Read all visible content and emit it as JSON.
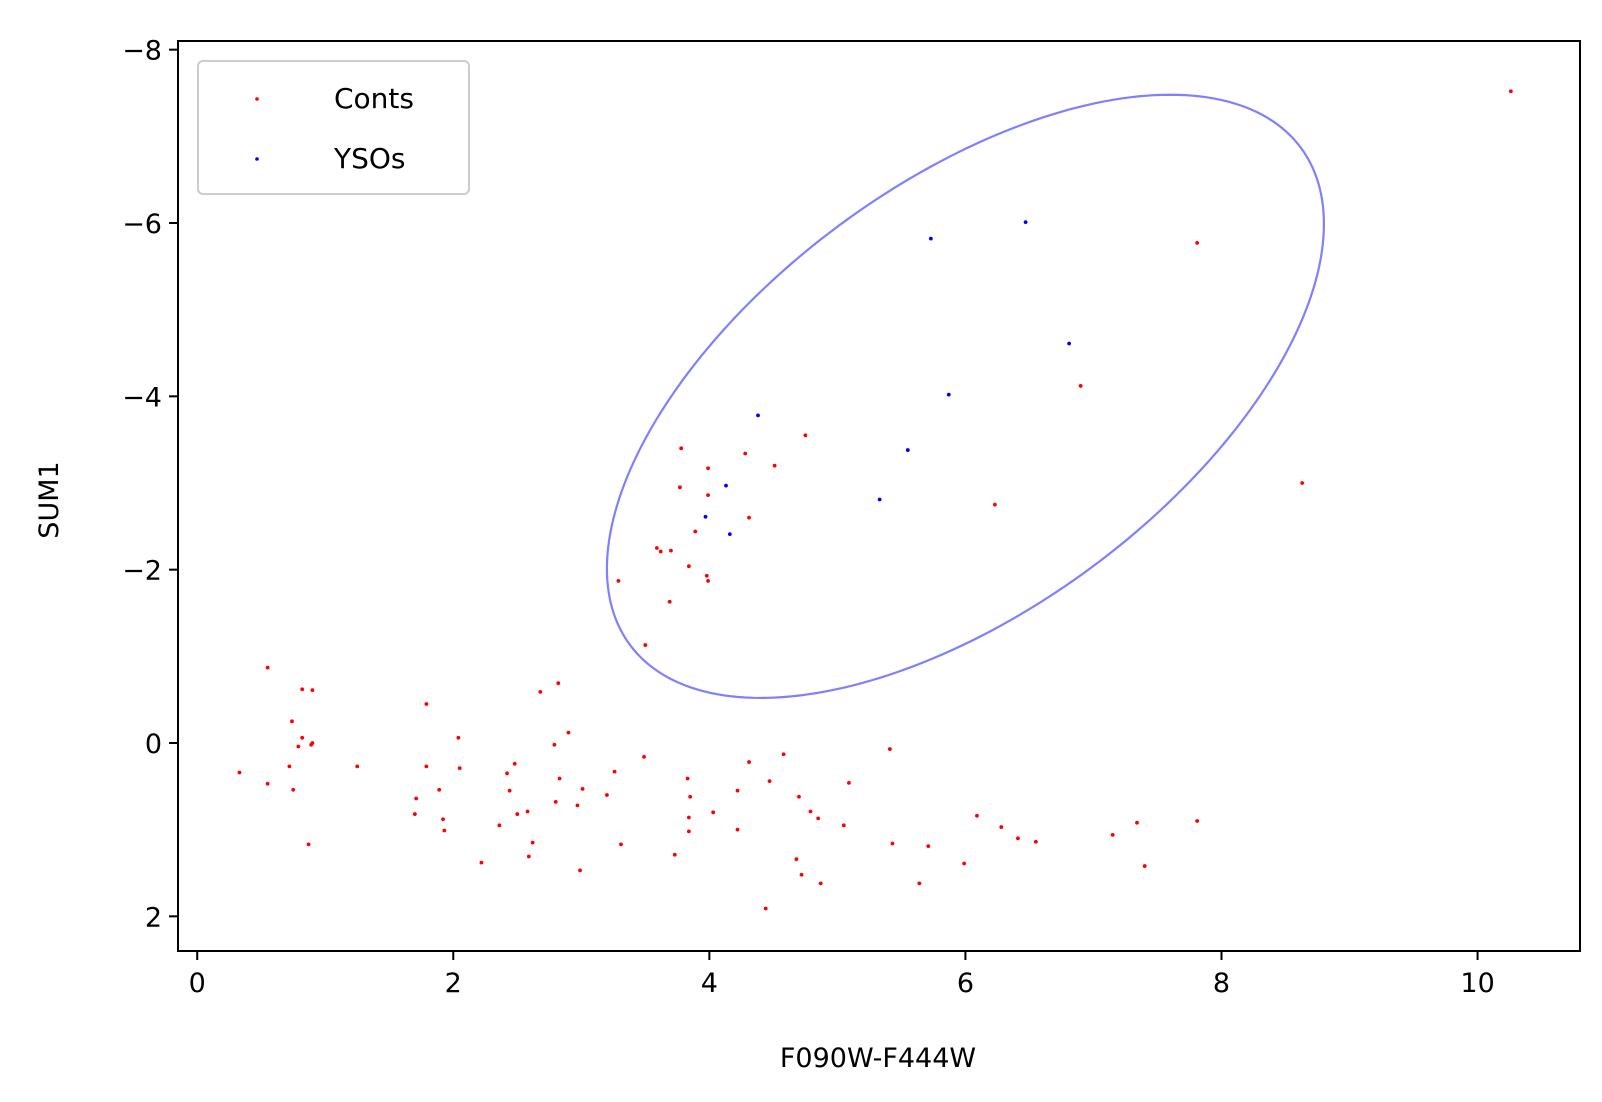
{
  "chart_data": {
    "type": "scatter",
    "xlabel": "F090W-F444W",
    "ylabel": "SUM1",
    "xlim": [
      -0.15,
      10.8
    ],
    "ylim": [
      2.4,
      -8.1
    ],
    "y_inverted": true,
    "x_ticks": [
      0,
      2,
      4,
      6,
      8,
      10
    ],
    "x_tick_labels": [
      "0",
      "2",
      "4",
      "6",
      "8",
      "10"
    ],
    "y_ticks": [
      -8,
      -6,
      -4,
      -2,
      0,
      2
    ],
    "y_tick_labels": [
      "−8",
      "−6",
      "−4",
      "−2",
      "0",
      "2"
    ],
    "grid": false,
    "legend_position": "top-left",
    "colors": {
      "conts": "#ff0000",
      "ysos": "#0000ff",
      "ellipse": "#8080ff"
    },
    "series": [
      {
        "name": "Conts",
        "color": "#ff0000",
        "points": [
          [
            0.33,
            0.34
          ],
          [
            0.55,
            -0.87
          ],
          [
            0.55,
            0.47
          ],
          [
            0.72,
            0.27
          ],
          [
            0.74,
            -0.25
          ],
          [
            0.75,
            0.54
          ],
          [
            0.79,
            0.04
          ],
          [
            0.82,
            -0.06
          ],
          [
            0.82,
            -0.62
          ],
          [
            0.87,
            1.17
          ],
          [
            0.89,
            0.02
          ],
          [
            0.9,
            -0.61
          ],
          [
            0.9,
            0.0
          ],
          [
            1.25,
            0.27
          ],
          [
            1.7,
            0.82
          ],
          [
            1.71,
            0.64
          ],
          [
            1.79,
            -0.45
          ],
          [
            1.79,
            0.27
          ],
          [
            1.89,
            0.54
          ],
          [
            1.92,
            0.88
          ],
          [
            1.93,
            1.01
          ],
          [
            2.04,
            -0.06
          ],
          [
            2.05,
            0.29
          ],
          [
            2.22,
            1.38
          ],
          [
            2.36,
            0.95
          ],
          [
            2.42,
            0.35
          ],
          [
            2.44,
            0.55
          ],
          [
            2.48,
            0.24
          ],
          [
            2.5,
            0.82
          ],
          [
            2.58,
            0.79
          ],
          [
            2.59,
            1.31
          ],
          [
            2.62,
            1.15
          ],
          [
            2.68,
            -0.59
          ],
          [
            2.79,
            0.02
          ],
          [
            2.8,
            0.68
          ],
          [
            2.82,
            -0.69
          ],
          [
            2.83,
            0.41
          ],
          [
            2.9,
            -0.12
          ],
          [
            2.97,
            0.72
          ],
          [
            2.99,
            1.47
          ],
          [
            3.01,
            0.53
          ],
          [
            3.2,
            0.6
          ],
          [
            3.26,
            0.33
          ],
          [
            3.29,
            -1.87
          ],
          [
            3.31,
            1.17
          ],
          [
            3.49,
            0.16
          ],
          [
            3.5,
            -1.13
          ],
          [
            3.59,
            -2.25
          ],
          [
            3.62,
            -2.21
          ],
          [
            3.69,
            -1.63
          ],
          [
            3.7,
            -2.22
          ],
          [
            3.73,
            1.29
          ],
          [
            3.77,
            -2.95
          ],
          [
            3.78,
            -3.4
          ],
          [
            3.83,
            0.41
          ],
          [
            3.84,
            -2.04
          ],
          [
            3.84,
            0.86
          ],
          [
            3.84,
            1.02
          ],
          [
            3.85,
            0.62
          ],
          [
            3.89,
            -2.44
          ],
          [
            3.98,
            -1.93
          ],
          [
            3.99,
            -3.17
          ],
          [
            3.99,
            -1.87
          ],
          [
            3.99,
            -2.86
          ],
          [
            4.03,
            0.8
          ],
          [
            4.22,
            0.55
          ],
          [
            4.22,
            1.0
          ],
          [
            4.28,
            -3.34
          ],
          [
            4.31,
            -2.6
          ],
          [
            4.31,
            0.22
          ],
          [
            4.44,
            1.91
          ],
          [
            4.47,
            0.44
          ],
          [
            4.51,
            -3.2
          ],
          [
            4.58,
            0.13
          ],
          [
            4.68,
            1.34
          ],
          [
            4.7,
            0.62
          ],
          [
            4.72,
            1.52
          ],
          [
            4.75,
            -3.55
          ],
          [
            4.79,
            0.79
          ],
          [
            4.85,
            0.87
          ],
          [
            4.87,
            1.62
          ],
          [
            5.05,
            0.95
          ],
          [
            5.09,
            0.46
          ],
          [
            5.41,
            0.07
          ],
          [
            5.43,
            1.16
          ],
          [
            5.64,
            1.62
          ],
          [
            5.71,
            1.19
          ],
          [
            5.99,
            1.39
          ],
          [
            6.09,
            0.84
          ],
          [
            6.23,
            -2.75
          ],
          [
            6.28,
            0.97
          ],
          [
            6.41,
            1.1
          ],
          [
            6.55,
            1.14
          ],
          [
            6.9,
            -4.12
          ],
          [
            7.15,
            1.06
          ],
          [
            7.34,
            0.92
          ],
          [
            7.4,
            1.42
          ],
          [
            7.81,
            -5.77
          ],
          [
            7.81,
            0.9
          ],
          [
            8.63,
            -3.0
          ],
          [
            10.26,
            -7.52
          ]
        ]
      },
      {
        "name": "YSOs",
        "color": "#0000ff",
        "points": [
          [
            3.97,
            -2.61
          ],
          [
            4.13,
            -2.97
          ],
          [
            4.16,
            -2.41
          ],
          [
            4.38,
            -3.78
          ],
          [
            5.33,
            -2.81
          ],
          [
            5.55,
            -3.38
          ],
          [
            5.73,
            -5.82
          ],
          [
            5.87,
            -4.02
          ],
          [
            6.47,
            -6.01
          ],
          [
            6.81,
            -4.61
          ]
        ]
      }
    ],
    "ellipse": {
      "center": [
        6.0,
        -4.0
      ],
      "x_half_range": 2.8,
      "y_half_range": 3.48,
      "x_edges": [
        3.2,
        8.8
      ],
      "y_edges": [
        -0.52,
        -7.48
      ],
      "topmost_x": 7.6,
      "bottommost_x": 4.38
    }
  }
}
